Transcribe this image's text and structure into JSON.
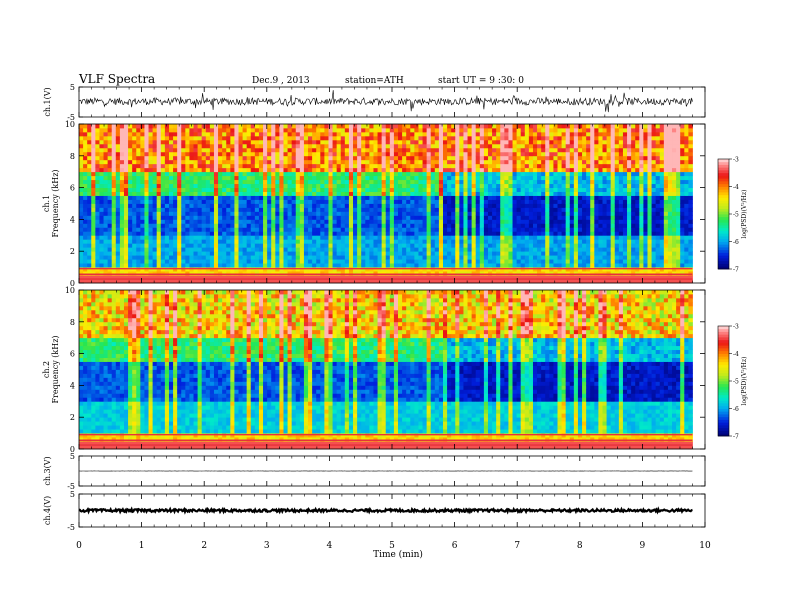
{
  "header": {
    "title": "VLF Spectra",
    "date": "Dec.9 , 2013",
    "station": "station=ATH",
    "start": "start UT = 9 :30: 0"
  },
  "x_axis": {
    "label": "Time (min)",
    "ticks": [
      "0",
      "1",
      "2",
      "3",
      "4",
      "5",
      "6",
      "7",
      "8",
      "9",
      "10"
    ]
  },
  "chart_data": [
    {
      "type": "line",
      "id": "ch1-voltage",
      "ylabel": "ch.1(V)",
      "ylim": [
        -5,
        5
      ],
      "ytick_labels": [
        "5",
        "-5"
      ],
      "x_unit": "min",
      "xlim": [
        0,
        10
      ],
      "data_end": 9.8,
      "mean": 0.2,
      "amplitude": 1.2,
      "color": "#000000"
    },
    {
      "type": "heatmap",
      "id": "ch1-spectrogram",
      "ylabel": "ch.1 Frequency (kHz)",
      "ylim": [
        0,
        10
      ],
      "ytick_labels": [
        "0",
        "2",
        "4",
        "6",
        "8",
        "10"
      ],
      "xlim": [
        0,
        10
      ],
      "data_end": 9.8,
      "colorbar": {
        "label": "log(PSD)(V²/Hz)",
        "range": [
          -7,
          -3
        ],
        "tick_labels": [
          "-7",
          "-6",
          "-5",
          "-4",
          "-3"
        ]
      }
    },
    {
      "type": "heatmap",
      "id": "ch2-spectrogram",
      "ylabel": "ch.2 Frequency (kHz)",
      "ylim": [
        0,
        10
      ],
      "ytick_labels": [
        "0",
        "2",
        "4",
        "6",
        "8",
        "10"
      ],
      "xlim": [
        0,
        10
      ],
      "data_end": 9.8,
      "colorbar": {
        "label": "log(PSD)(V²/Hz)",
        "range": [
          -7,
          -3
        ],
        "tick_labels": [
          "-7",
          "-6",
          "-5",
          "-4",
          "-3"
        ]
      }
    },
    {
      "type": "line",
      "id": "ch3-voltage",
      "ylabel": "ch.3(V)",
      "ylim": [
        -5,
        5
      ],
      "ytick_labels": [
        "5",
        "-5"
      ],
      "xlim": [
        0,
        10
      ],
      "data_end": 9.8,
      "mean": 0,
      "amplitude": 0.05,
      "color": "#000000"
    },
    {
      "type": "line",
      "id": "ch4-voltage",
      "ylabel": "ch.4(V)",
      "ylim": [
        -5,
        5
      ],
      "ytick_labels": [
        "5",
        "-5"
      ],
      "xlim": [
        0,
        10
      ],
      "data_end": 9.8,
      "mean": 0,
      "amplitude": 0.4,
      "color": "#000000"
    }
  ]
}
